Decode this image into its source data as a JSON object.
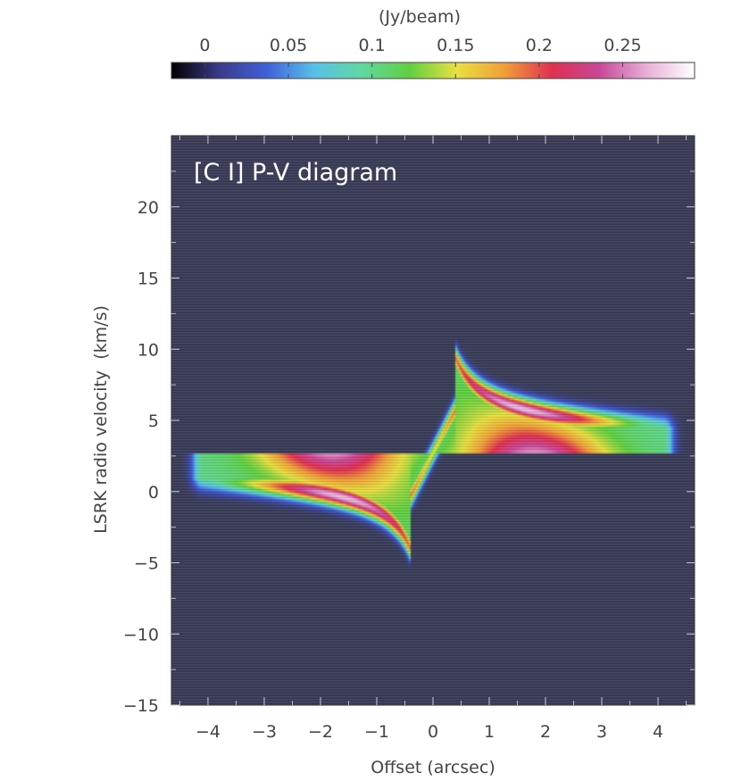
{
  "chart_data": {
    "type": "heatmap",
    "title": "[C I] P-V diagram",
    "xlabel": "Offset (arcsec)",
    "ylabel": "LSRK radio velocity  (km/s)",
    "xlim": [
      -4.65,
      4.65
    ],
    "ylim": [
      -15,
      25
    ],
    "xticks": [
      -4,
      -3,
      -2,
      -1,
      0,
      1,
      2,
      3,
      4
    ],
    "xtick_labels": [
      "−4",
      "−3",
      "−2",
      "−1",
      "0",
      "1",
      "2",
      "3",
      "4"
    ],
    "yticks": [
      -15,
      -10,
      -5,
      0,
      5,
      10,
      15,
      20
    ],
    "ytick_labels": [
      "−15",
      "−10",
      "−5",
      "0",
      "5",
      "10",
      "15",
      "20"
    ],
    "grid": false,
    "colorbar": {
      "label": "(Jy/beam)",
      "range": [
        -0.02,
        0.293
      ],
      "ticks": [
        0,
        0.05,
        0.1,
        0.15,
        0.2,
        0.25
      ],
      "tick_labels": [
        "0",
        "0.05",
        "0.1",
        "0.15",
        "0.2",
        "0.25"
      ],
      "placement": "top",
      "colors": [
        "#000000",
        "#3a3a8a",
        "#4060d8",
        "#58c0e8",
        "#60d8a0",
        "#60d040",
        "#e8e040",
        "#f0a038",
        "#e03050",
        "#c84898",
        "#e8b0d8",
        "#ffffff"
      ]
    },
    "background_color": "#3a3d58",
    "emission": {
      "systemic_velocity": 2.7,
      "peak_value": 0.29,
      "redshifted_lobe": {
        "offset_range": [
          0.4,
          4.2
        ],
        "peak_offset": 1.8,
        "peak_velocity": 6.3,
        "max_velocity": 10.4
      },
      "blueshifted_lobe": {
        "offset_range": [
          -4.2,
          -0.4
        ],
        "peak_offset": -1.8,
        "peak_velocity": -0.5,
        "min_velocity": -4.5
      }
    }
  }
}
